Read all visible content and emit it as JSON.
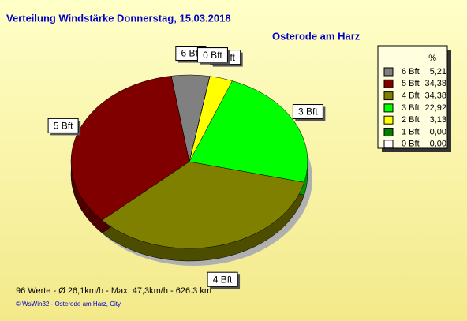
{
  "chart_data": {
    "type": "pie",
    "title": "Verteilung Windstärke  Donnerstag, 15.03.2018",
    "subtitle": "Osterode am Harz",
    "legend_header": "%",
    "categories": [
      "6 Bft",
      "5 Bft",
      "4 Bft",
      "3 Bft",
      "2 Bft",
      "1 Bft",
      "0 Bft"
    ],
    "values": [
      5.21,
      34.38,
      34.38,
      22.92,
      3.13,
      0.0,
      0.0
    ],
    "value_labels": [
      "5,21",
      "34,38",
      "34,38",
      "22,92",
      "3,13",
      "0,00",
      "0,00"
    ],
    "colors": [
      "#808080",
      "#800000",
      "#808000",
      "#00ff00",
      "#ffff00",
      "#008000",
      "#ffffff"
    ],
    "legend": "right",
    "footer": "96 Werte   -   Ø 26,1km/h  -  Max. 47,3km/h   -   626.3 km",
    "credit": "© WsWin32  -  Osterode am Harz, City"
  }
}
